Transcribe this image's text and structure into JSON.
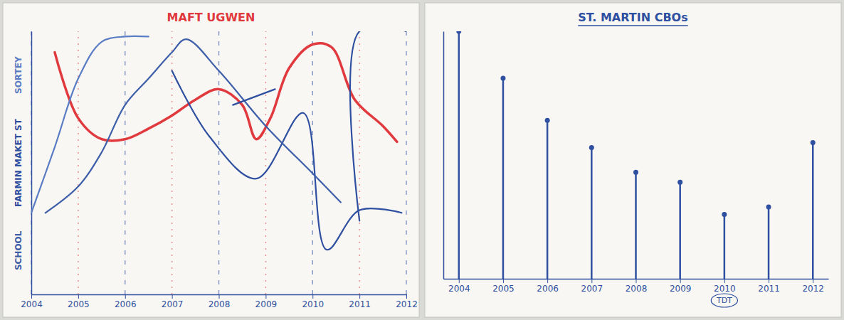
{
  "chart_data": [
    {
      "type": "line",
      "title": "MAFT UGWEN",
      "xlim": [
        2004,
        2012
      ],
      "xticks": [
        2004,
        2005,
        2006,
        2007,
        2008,
        2009,
        2010,
        2011,
        2012
      ],
      "ylim": [
        0,
        100
      ],
      "tick_labels": "x",
      "grid": true,
      "series": [
        {
          "color": "#e0393e",
          "x": [
            2004.5,
            2005,
            2005.5,
            2006,
            2006.5,
            2007,
            2007.5,
            2008,
            2008.5,
            2008.8,
            2009.1,
            2009.5,
            2010,
            2010.4,
            2010.9,
            2011.5,
            2011.8
          ],
          "values": [
            92,
            67,
            59,
            59,
            63,
            68,
            74,
            78,
            72,
            59,
            67,
            86,
            95,
            94,
            74,
            64,
            58
          ]
        },
        {
          "name": "SORTEY",
          "color": "#5a7cc4",
          "x": [
            2004,
            2004.5,
            2005,
            2005.5,
            2006,
            2006.5
          ],
          "values": [
            31,
            56,
            82,
            96,
            98,
            98
          ]
        },
        {
          "name": "FARMIN MAKET ST",
          "color": "#2f4fa0",
          "x": [
            2007,
            2007.8,
            2008.8,
            2009.8,
            2010.3,
            2011,
            2011.9
          ],
          "values": [
            85,
            60,
            44,
            69,
            17,
            32,
            31
          ]
        },
        {
          "name": "SCHOOL",
          "color": "#3d5ea8",
          "x": [
            2004.3,
            2005,
            2005.5,
            2006,
            2006.5,
            2007,
            2007.3,
            2008,
            2009,
            2010,
            2010.6
          ],
          "values": [
            31,
            41,
            54,
            72,
            82,
            92,
            97,
            85,
            64,
            46,
            35
          ]
        },
        {
          "color": "#2f4fa0",
          "x": [
            2011,
            2011,
            2012
          ],
          "values": [
            28,
            100,
            100
          ]
        },
        {
          "color": "#2f4fa0",
          "x": [
            2008.3,
            2009.2
          ],
          "values": [
            72,
            78
          ]
        }
      ]
    },
    {
      "type": "lollipop",
      "title": "ST. MARTIN CBOs",
      "categories": [
        "2004",
        "2005",
        "2006",
        "2007",
        "2008",
        "2009",
        "2010",
        "2011",
        "2012"
      ],
      "values": [
        100,
        81,
        64,
        53,
        43,
        39,
        26,
        29,
        55
      ],
      "color": "#2f4fa0",
      "marker": "circle",
      "ylim": [
        0,
        100
      ],
      "tick_labels": "x",
      "annotations": [
        {
          "text": "TDT",
          "x": "2010"
        }
      ]
    }
  ]
}
